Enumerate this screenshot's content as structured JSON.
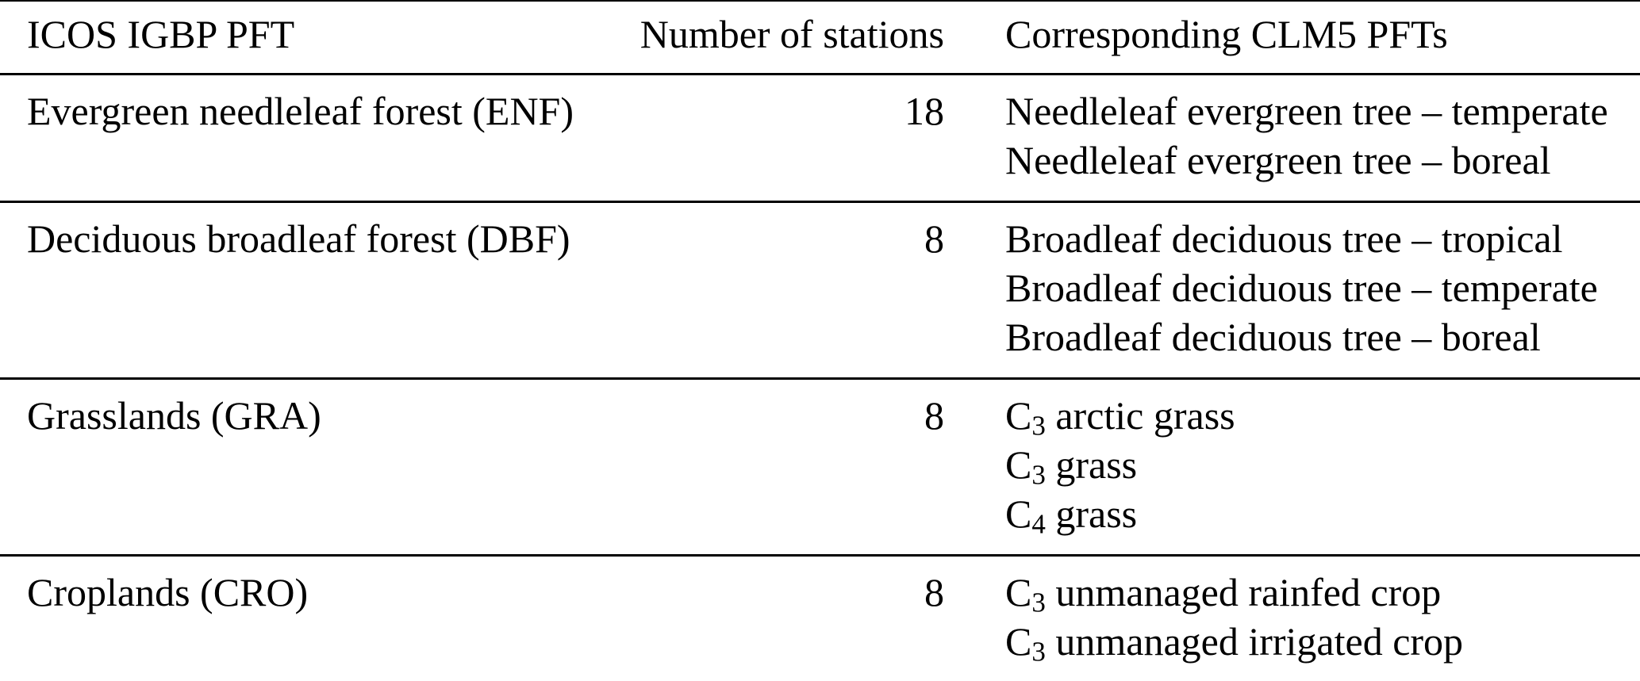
{
  "colors": {
    "text": "#000000",
    "rule": "#000000",
    "background": "#ffffff"
  },
  "table": {
    "headers": {
      "col1": "ICOS IGBP PFT",
      "col2": "Number of stations",
      "col3": "Corresponding CLM5 PFTs"
    },
    "rows": [
      {
        "pft": "Evergreen needleleaf forest (ENF)",
        "stations": "18",
        "clm5": [
          {
            "text": "Needleleaf evergreen tree – temperate"
          },
          {
            "text": "Needleleaf evergreen tree – boreal"
          }
        ]
      },
      {
        "pft": "Deciduous broadleaf forest (DBF)",
        "stations": "8",
        "clm5": [
          {
            "text": "Broadleaf deciduous tree – tropical"
          },
          {
            "text": "Broadleaf deciduous tree – temperate"
          },
          {
            "text": "Broadleaf deciduous tree – boreal"
          }
        ]
      },
      {
        "pft": "Grasslands (GRA)",
        "stations": "8",
        "clm5": [
          {
            "base": "C",
            "sub": "3",
            "text": " arctic grass"
          },
          {
            "base": "C",
            "sub": "3",
            "text": " grass"
          },
          {
            "base": "C",
            "sub": "4",
            "text": " grass"
          }
        ]
      },
      {
        "pft": "Croplands (CRO)",
        "stations": "8",
        "clm5": [
          {
            "base": "C",
            "sub": "3",
            "text": " unmanaged rainfed crop"
          },
          {
            "base": "C",
            "sub": "3",
            "text": " unmanaged irrigated crop"
          }
        ]
      }
    ]
  }
}
